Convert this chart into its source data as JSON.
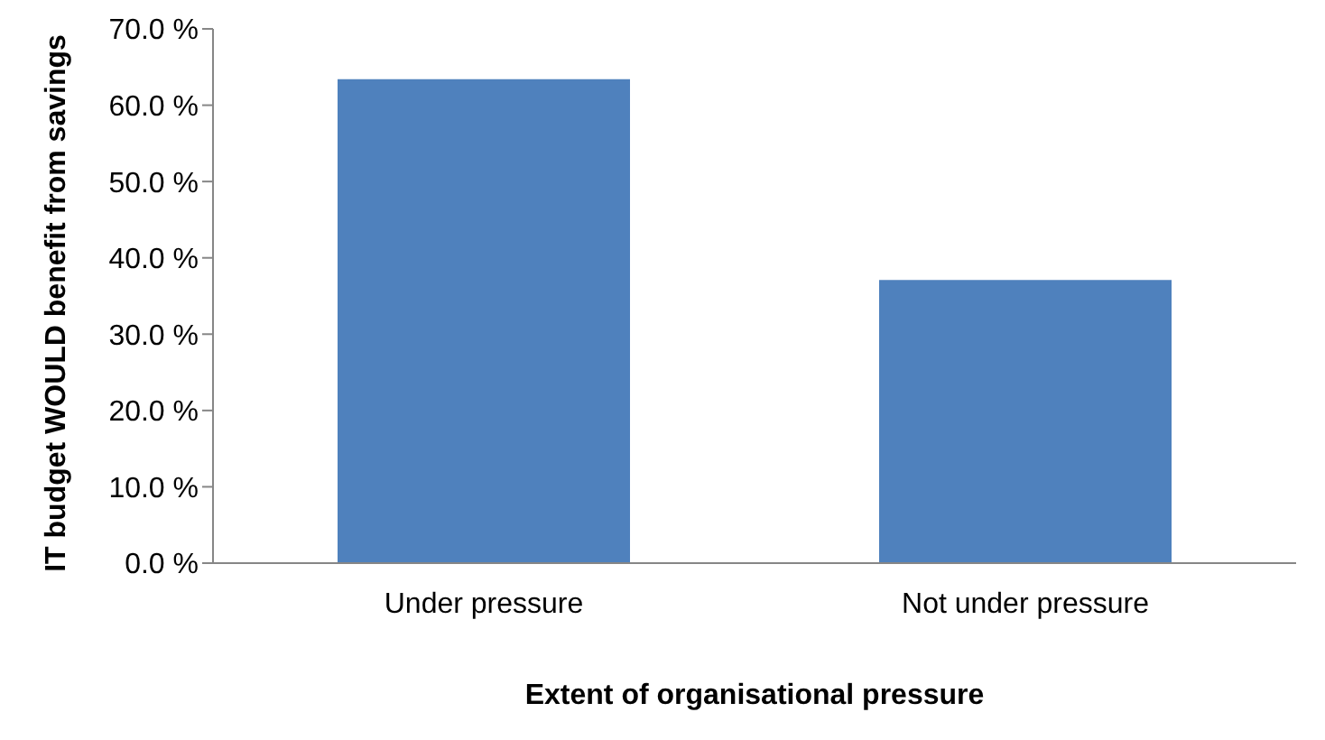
{
  "chart_data": {
    "type": "bar",
    "xlabel": "Extent of organisational pressure",
    "ylabel": "IT budget WOULD benefit from savings",
    "categories": [
      "Under pressure",
      "Not under pressure"
    ],
    "values": [
      63.4,
      37.1
    ],
    "color": "#4f81bd",
    "ylim": [
      0,
      70
    ],
    "yticks": [
      {
        "value": 0,
        "label": "0.0 %"
      },
      {
        "value": 10,
        "label": "10.0 %"
      },
      {
        "value": 20,
        "label": "20.0 %"
      },
      {
        "value": 30,
        "label": "30.0 %"
      },
      {
        "value": 40,
        "label": "40.0 %"
      },
      {
        "value": 50,
        "label": "50.0 %"
      },
      {
        "value": 60,
        "label": "60.0 %"
      },
      {
        "value": 70,
        "label": "70.0 %"
      }
    ],
    "grid": false,
    "legend": false
  }
}
